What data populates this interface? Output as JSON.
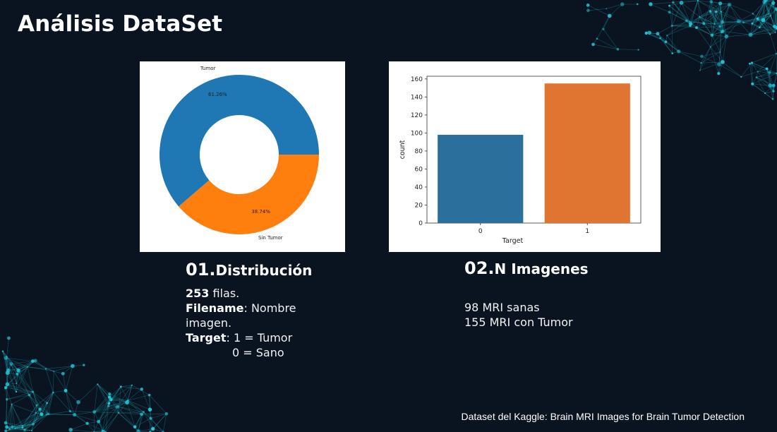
{
  "slide": {
    "title": "Análisis DataSet",
    "footer": "Dataset del Kaggle: Brain MRI Images for Brain Tumor Detection"
  },
  "sections": [
    {
      "number": "01.",
      "title": "Distribución",
      "rows_count": "253",
      "rows_label": " filas.",
      "filename_label": "Filename",
      "filename_text": ": Nombre imagen.",
      "target_label": "Target",
      "target_line1": ": 1 = Tumor",
      "target_line2": "0 = Sano"
    },
    {
      "number": "02.",
      "title": "N Imagenes",
      "line1": "98 MRI sanas",
      "line2": "155 MRI con Tumor"
    }
  ],
  "chart_data": [
    {
      "type": "pie",
      "donut": true,
      "slices": [
        {
          "label": "Tumor",
          "value": 61.26,
          "pct_label": "61.26%",
          "color": "#1f77b4"
        },
        {
          "label": "Sin Tumor",
          "value": 38.74,
          "pct_label": "38.74%",
          "color": "#ff7f0e"
        }
      ]
    },
    {
      "type": "bar",
      "categories": [
        "0",
        "1"
      ],
      "values": [
        98,
        155
      ],
      "colors": [
        "#2b6f9c",
        "#e07531"
      ],
      "xlabel": "Target",
      "ylabel": "count",
      "ylim": [
        0,
        163
      ],
      "yticks": [
        0,
        20,
        40,
        60,
        80,
        100,
        120,
        140,
        160
      ],
      "grid": false
    }
  ],
  "theme": {
    "background": "#0a1421",
    "accent": "#1ec8d8"
  }
}
